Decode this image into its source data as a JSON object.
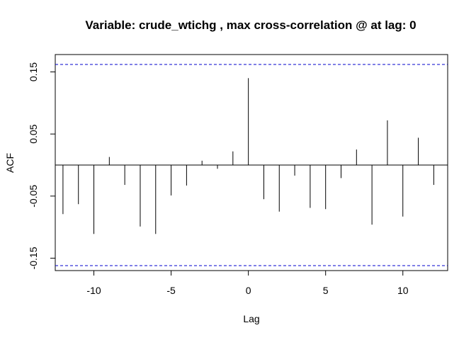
{
  "chart_data": {
    "type": "bar",
    "title": "Variable: crude_wtichg , max cross-correlation @ at lag: 0",
    "xlabel": "Lag",
    "ylabel": "ACF",
    "x_ticks": [
      "-10",
      "-5",
      "0",
      "5",
      "10"
    ],
    "y_ticks": [
      "-0.15",
      "-0.05",
      "0.05",
      "0.15"
    ],
    "xlim": [
      -12.5,
      12.9
    ],
    "ylim": [
      -0.17,
      0.178
    ],
    "lags": [
      -12,
      -11,
      -10,
      -9,
      -8,
      -7,
      -6,
      -5,
      -4,
      -3,
      -2,
      -1,
      0,
      1,
      2,
      3,
      4,
      5,
      6,
      7,
      8,
      9,
      10,
      11,
      12
    ],
    "values": [
      -0.079,
      -0.063,
      -0.111,
      0.013,
      -0.032,
      -0.099,
      -0.111,
      -0.049,
      -0.033,
      0.007,
      -0.006,
      0.022,
      0.14,
      -0.055,
      -0.075,
      -0.017,
      -0.069,
      -0.071,
      -0.021,
      0.025,
      -0.096,
      0.072,
      -0.083,
      0.044,
      -0.032
    ],
    "confidence_limit": 0.162,
    "colors": {
      "bars": "#000000",
      "ci": "#0000cc",
      "axis": "#000000"
    },
    "grid": false
  }
}
